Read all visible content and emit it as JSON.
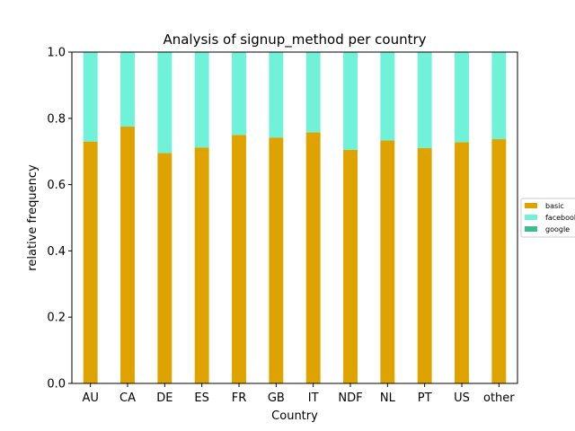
{
  "chart_data": {
    "type": "bar",
    "stacked": true,
    "title": "Analysis of signup_method per country",
    "xlabel": "Country",
    "ylabel": "relative frequency",
    "ylim": [
      0,
      1.0
    ],
    "yticks": [
      "0.0",
      "0.2",
      "0.4",
      "0.6",
      "0.8",
      "1.0"
    ],
    "categories": [
      "AU",
      "CA",
      "DE",
      "ES",
      "FR",
      "GB",
      "IT",
      "NDF",
      "NL",
      "PT",
      "US",
      "other"
    ],
    "series": [
      {
        "name": "basic",
        "color": "#dfa300",
        "values": [
          0.73,
          0.775,
          0.695,
          0.712,
          0.75,
          0.742,
          0.758,
          0.705,
          0.733,
          0.71,
          0.728,
          0.737
        ]
      },
      {
        "name": "facebook",
        "color": "#6ff2d8",
        "values": [
          0.27,
          0.225,
          0.305,
          0.288,
          0.25,
          0.258,
          0.242,
          0.295,
          0.267,
          0.29,
          0.272,
          0.263
        ]
      },
      {
        "name": "google",
        "color": "#3dbd8f",
        "values": [
          0,
          0,
          0,
          0,
          0,
          0,
          0,
          0,
          0,
          0,
          0,
          0
        ]
      }
    ],
    "grid": false,
    "legend_position": "right"
  }
}
